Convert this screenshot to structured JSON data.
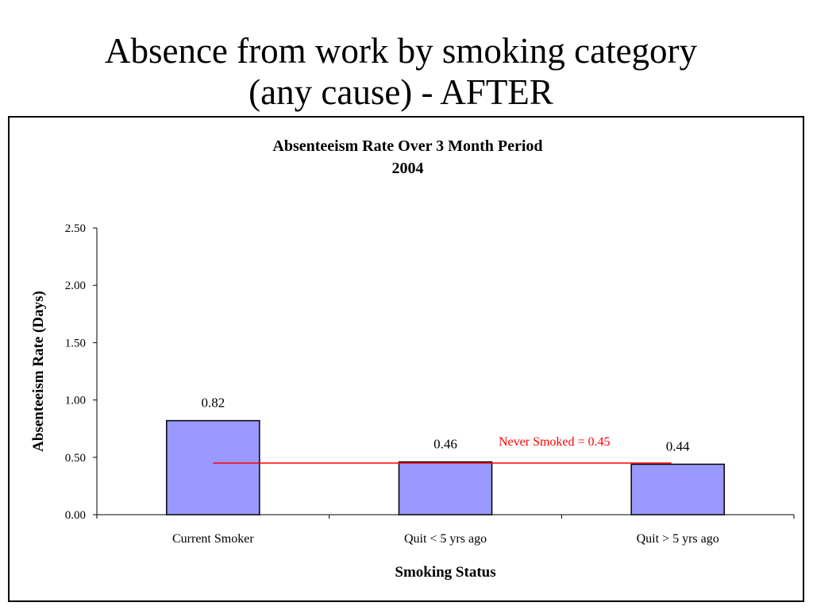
{
  "slide": {
    "title_line1": "Absence from work by smoking category",
    "title_line2": "(any cause) - AFTER"
  },
  "colors": {
    "bar_fill": "#9999ff",
    "bar_stroke": "#000000",
    "reference_line": "#ff0000",
    "annotation_text": "#ff0000"
  },
  "chart_data": {
    "type": "bar",
    "title": "Absenteeism Rate Over 3 Month Period",
    "subtitle": "2004",
    "xlabel": "Smoking Status",
    "ylabel": "Absenteeism Rate (Days)",
    "ylim": [
      0,
      2.5
    ],
    "yticks": [
      "0.00",
      "0.50",
      "1.00",
      "1.50",
      "2.00",
      "2.50"
    ],
    "categories": [
      "Current Smoker",
      "Quit < 5 yrs ago",
      "Quit > 5 yrs ago"
    ],
    "values": [
      0.82,
      0.46,
      0.44
    ],
    "data_labels": [
      "0.82",
      "0.46",
      "0.44"
    ],
    "grid": false,
    "reference_line": {
      "value": 0.45,
      "label": "Never Smoked = 0.45"
    }
  }
}
